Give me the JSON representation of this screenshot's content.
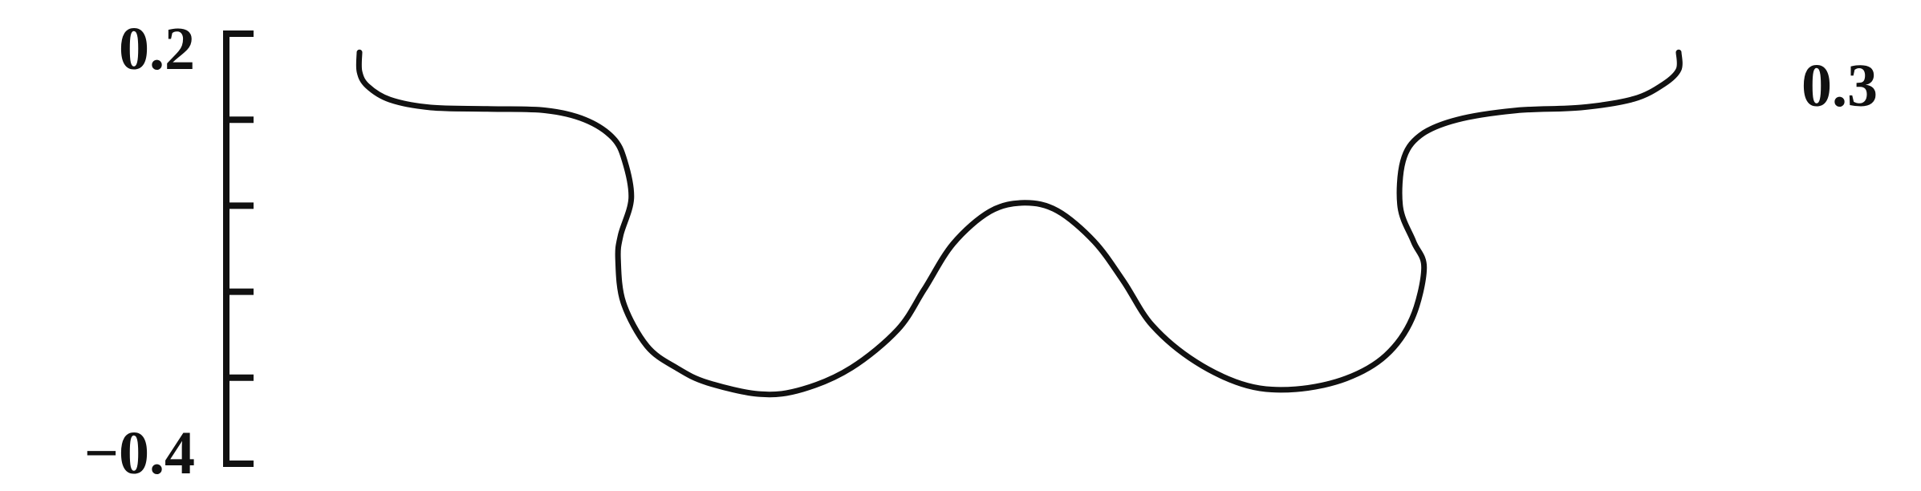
{
  "chart_data": {
    "type": "line",
    "title": "",
    "xlabel": "",
    "ylabel": "",
    "ylim": [
      -0.4,
      0.2
    ],
    "ytick_labels": [
      "0.2",
      "-0.4"
    ],
    "minor_ytick_count": 4,
    "side_label": "0.3",
    "grid": false,
    "x_normalized_note": "",
    "series": [
      {
        "points": [
          [
            0.0,
            0.174
          ],
          [
            0.0,
            0.147
          ],
          [
            0.006,
            0.127
          ],
          [
            0.023,
            0.108
          ],
          [
            0.054,
            0.097
          ],
          [
            0.097,
            0.095
          ],
          [
            0.141,
            0.093
          ],
          [
            0.171,
            0.08
          ],
          [
            0.192,
            0.055
          ],
          [
            0.201,
            0.023
          ],
          [
            0.206,
            -0.03
          ],
          [
            0.198,
            -0.081
          ],
          [
            0.196,
            -0.114
          ],
          [
            0.2,
            -0.175
          ],
          [
            0.218,
            -0.236
          ],
          [
            0.241,
            -0.267
          ],
          [
            0.264,
            -0.287
          ],
          [
            0.304,
            -0.303
          ],
          [
            0.336,
            -0.296
          ],
          [
            0.373,
            -0.266
          ],
          [
            0.408,
            -0.213
          ],
          [
            0.428,
            -0.157
          ],
          [
            0.45,
            -0.093
          ],
          [
            0.478,
            -0.048
          ],
          [
            0.504,
            -0.036
          ],
          [
            0.529,
            -0.047
          ],
          [
            0.557,
            -0.09
          ],
          [
            0.579,
            -0.145
          ],
          [
            0.601,
            -0.207
          ],
          [
            0.634,
            -0.258
          ],
          [
            0.673,
            -0.291
          ],
          [
            0.71,
            -0.296
          ],
          [
            0.748,
            -0.281
          ],
          [
            0.778,
            -0.249
          ],
          [
            0.798,
            -0.197
          ],
          [
            0.807,
            -0.127
          ],
          [
            0.799,
            -0.09
          ],
          [
            0.789,
            -0.042
          ],
          [
            0.791,
            0.022
          ],
          [
            0.804,
            0.058
          ],
          [
            0.832,
            0.08
          ],
          [
            0.877,
            0.093
          ],
          [
            0.926,
            0.097
          ],
          [
            0.966,
            0.109
          ],
          [
            0.989,
            0.13
          ],
          [
            1.0,
            0.15
          ],
          [
            1.0,
            0.174
          ]
        ]
      }
    ]
  }
}
